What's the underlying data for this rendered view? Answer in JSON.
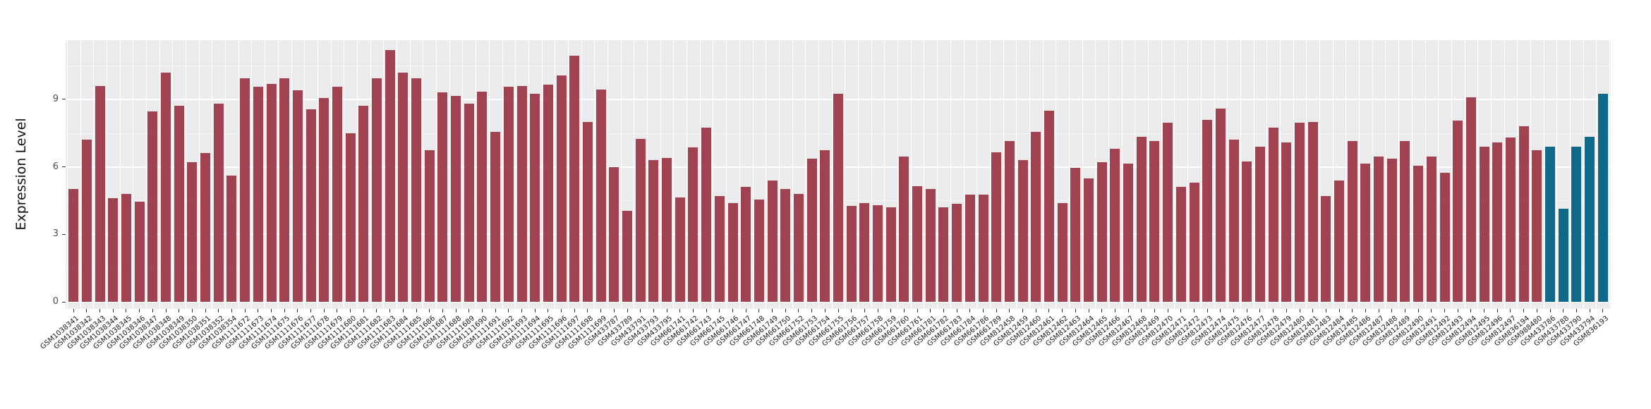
{
  "figure": {
    "background": "#ffffff"
  },
  "chart_data": {
    "type": "bar",
    "title": "",
    "xlabel": "",
    "ylabel": "Expression Level",
    "yticks": [
      0,
      3,
      6,
      9
    ],
    "ylim": [
      0,
      11.63
    ],
    "grid": "on",
    "legend": "none",
    "panel_background": "#ECEBEC",
    "bar_color_default": "#A0424F",
    "bar_color_highlight": "#0E6A88",
    "highlight_categories": [
      "GSM433786",
      "GSM433788",
      "GSM433790",
      "GSM433794",
      "GSM836193"
    ],
    "categories": [
      "GSM1038341",
      "GSM1038342",
      "GSM1038343",
      "GSM1038344",
      "GSM1038345",
      "GSM1038346",
      "GSM1038347",
      "GSM1038348",
      "GSM1038349",
      "GSM1038350",
      "GSM1038351",
      "GSM1038352",
      "GSM1038354",
      "GSM1111672",
      "GSM1111673",
      "GSM1111674",
      "GSM1111675",
      "GSM1111676",
      "GSM1111677",
      "GSM1111678",
      "GSM1111679",
      "GSM1111680",
      "GSM1111681",
      "GSM1111682",
      "GSM1111683",
      "GSM1111684",
      "GSM1111685",
      "GSM1111686",
      "GSM1111687",
      "GSM1111688",
      "GSM1111689",
      "GSM1111690",
      "GSM1111691",
      "GSM1111692",
      "GSM1111693",
      "GSM1111694",
      "GSM1111695",
      "GSM1111696",
      "GSM1111697",
      "GSM1111698",
      "GSM1111699",
      "GSM433787",
      "GSM433789",
      "GSM433791",
      "GSM433793",
      "GSM433795",
      "GSM661741",
      "GSM661742",
      "GSM661743",
      "GSM661745",
      "GSM661746",
      "GSM661747",
      "GSM661748",
      "GSM661749",
      "GSM661750",
      "GSM661752",
      "GSM661753",
      "GSM661754",
      "GSM661755",
      "GSM661756",
      "GSM661757",
      "GSM661758",
      "GSM661759",
      "GSM661760",
      "GSM661761",
      "GSM661781",
      "GSM661782",
      "GSM661783",
      "GSM661784",
      "GSM661786",
      "GSM661789",
      "GSM812458",
      "GSM812459",
      "GSM812460",
      "GSM812461",
      "GSM812462",
      "GSM812463",
      "GSM812464",
      "GSM812465",
      "GSM812466",
      "GSM812467",
      "GSM812468",
      "GSM812469",
      "GSM812470",
      "GSM812471",
      "GSM812472",
      "GSM812473",
      "GSM812474",
      "GSM812475",
      "GSM812476",
      "GSM812477",
      "GSM812478",
      "GSM812479",
      "GSM812480",
      "GSM812481",
      "GSM812483",
      "GSM812484",
      "GSM812485",
      "GSM812486",
      "GSM812487",
      "GSM812488",
      "GSM812489",
      "GSM812490",
      "GSM812491",
      "GSM812492",
      "GSM812493",
      "GSM812494",
      "GSM812495",
      "GSM812496",
      "GSM812497",
      "GSM836194",
      "GSM988480",
      "GSM433786",
      "GSM433788",
      "GSM433790",
      "GSM433794",
      "GSM836193"
    ],
    "values": [
      5.0,
      7.2,
      9.6,
      4.6,
      4.8,
      4.45,
      8.45,
      10.2,
      8.7,
      6.2,
      6.6,
      8.8,
      5.6,
      9.95,
      9.55,
      9.7,
      9.95,
      9.4,
      8.55,
      9.05,
      9.55,
      7.5,
      8.7,
      9.95,
      11.2,
      10.2,
      9.95,
      6.75,
      9.3,
      9.15,
      8.8,
      9.35,
      7.55,
      9.55,
      9.6,
      9.25,
      9.65,
      10.05,
      10.95,
      8.0,
      9.45,
      6.0,
      4.05,
      7.25,
      6.3,
      6.4,
      4.65,
      6.85,
      7.75,
      4.7,
      4.4,
      5.1,
      4.55,
      5.4,
      5.0,
      4.8,
      6.35,
      6.75,
      9.25,
      4.25,
      4.4,
      4.3,
      4.2,
      6.45,
      5.15,
      5.0,
      4.2,
      4.35,
      4.75,
      4.75,
      6.65,
      7.15,
      6.3,
      7.55,
      8.5,
      4.4,
      5.95,
      5.5,
      6.2,
      6.8,
      6.15,
      7.35,
      7.15,
      7.95,
      5.1,
      5.3,
      8.1,
      8.6,
      7.2,
      6.25,
      6.9,
      7.75,
      7.1,
      7.95,
      8.0,
      4.7,
      5.4,
      7.15,
      6.15,
      6.45,
      6.35,
      7.15,
      6.05,
      6.45,
      5.75,
      8.05,
      9.1,
      6.9,
      7.1,
      7.3,
      7.8,
      6.75,
      6.9,
      4.15,
      6.9,
      7.35,
      9.25
    ]
  }
}
